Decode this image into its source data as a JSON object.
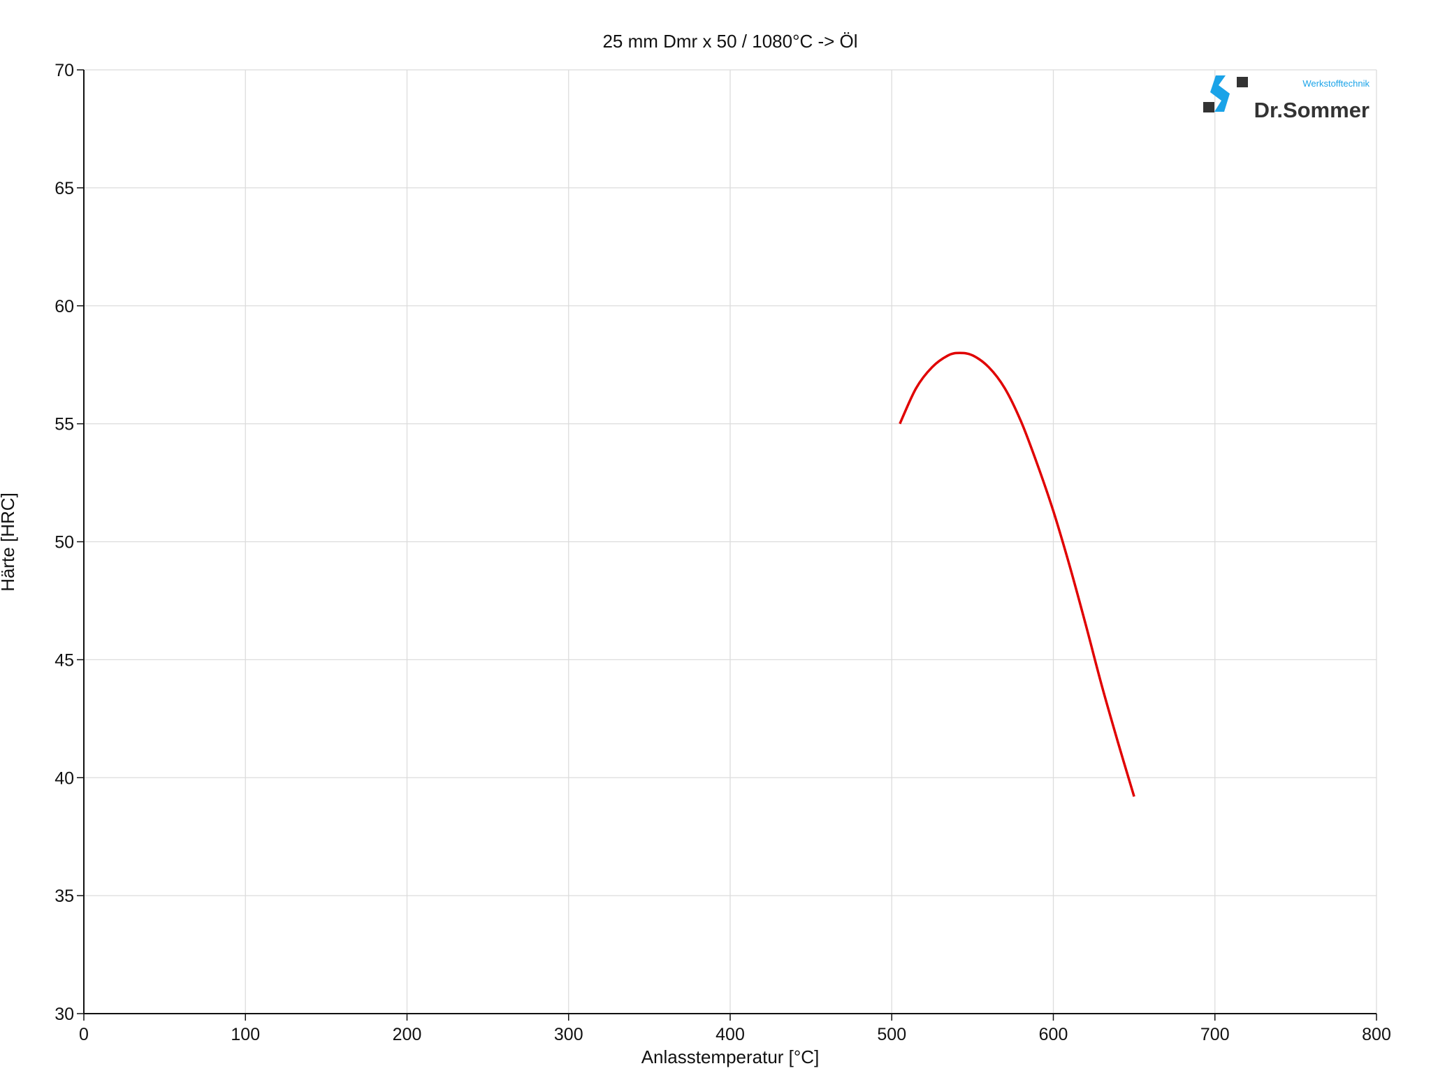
{
  "chart_data": {
    "type": "line",
    "title": "25 mm Dmr x 50 / 1080°C -> Öl",
    "xlabel": "Anlasstemperatur [°C]",
    "ylabel": "Härte [HRC]",
    "xlim": [
      0,
      800
    ],
    "ylim": [
      30,
      70
    ],
    "xticks": [
      0,
      100,
      200,
      300,
      400,
      500,
      600,
      700,
      800
    ],
    "yticks": [
      30,
      35,
      40,
      45,
      50,
      55,
      60,
      65,
      70
    ],
    "grid": true,
    "series": [
      {
        "color": "#e00000",
        "x": [
          505,
          515,
          525,
          535,
          542,
          550,
          560,
          570,
          580,
          590,
          600,
          610,
          620,
          630,
          640,
          650
        ],
        "y": [
          55.0,
          56.5,
          57.4,
          57.9,
          58.0,
          57.9,
          57.4,
          56.5,
          55.1,
          53.3,
          51.3,
          49.0,
          46.5,
          43.9,
          41.5,
          39.2
        ]
      }
    ]
  },
  "logo": {
    "brand": "Dr.Sommer",
    "tagline": "Werkstofftechnik",
    "blue": "#1aa3e8",
    "dark": "#333333"
  }
}
